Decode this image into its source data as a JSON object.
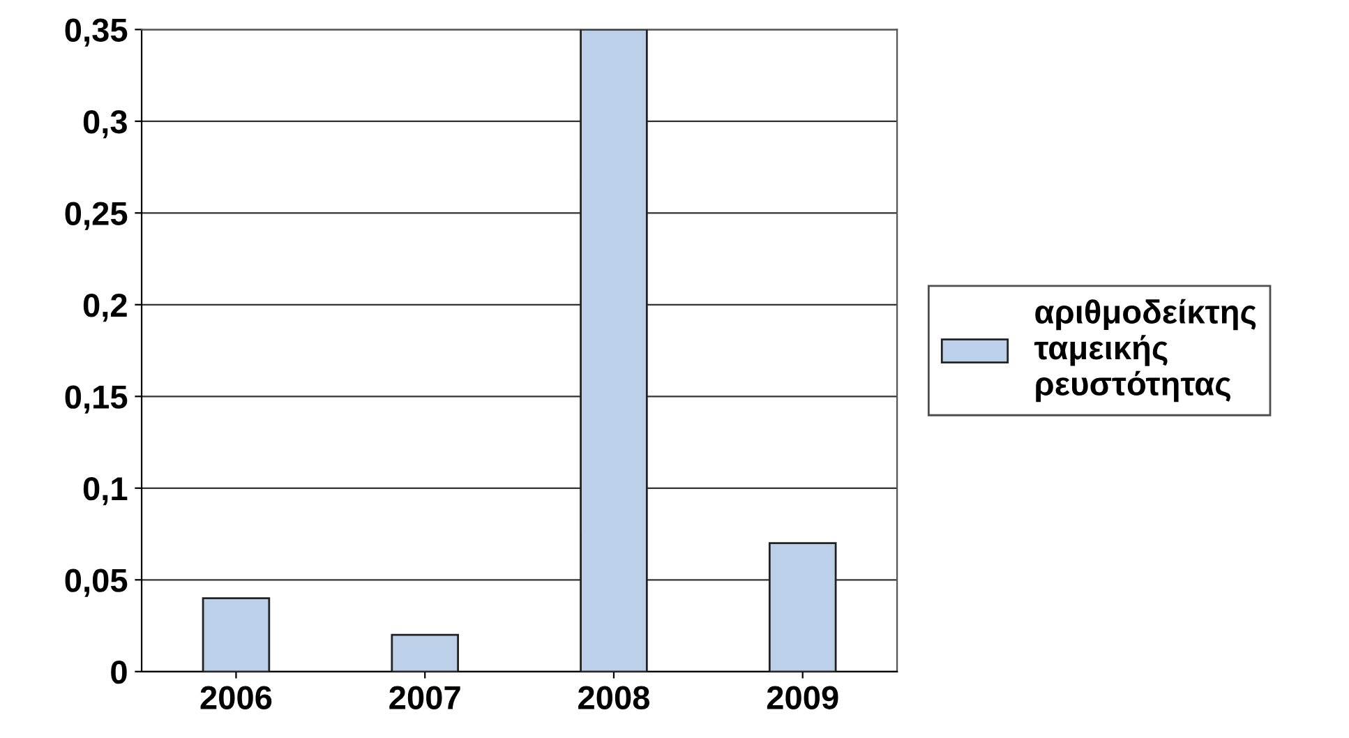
{
  "chart_data": {
    "type": "bar",
    "categories": [
      "2006",
      "2007",
      "2008",
      "2009"
    ],
    "series": [
      {
        "name": "αριθμοδείκτης ταμεικής ρευστότητας",
        "color": "#bcd0ea",
        "values": [
          0.04,
          0.02,
          0.35,
          0.07
        ]
      }
    ],
    "ylim": [
      0,
      0.35
    ],
    "yticks": [
      0,
      {
        "value": 0.05,
        "label": "0,05"
      },
      {
        "value": 0.1,
        "label": "0,1"
      },
      {
        "value": 0.15,
        "label": "0,15"
      },
      {
        "value": 0.2,
        "label": "0,2"
      },
      {
        "value": 0.25,
        "label": "0,25"
      },
      {
        "value": 0.3,
        "label": "0,3"
      },
      {
        "value": 0.35,
        "label": "0,35"
      }
    ],
    "grid": "y",
    "legend": "right"
  }
}
